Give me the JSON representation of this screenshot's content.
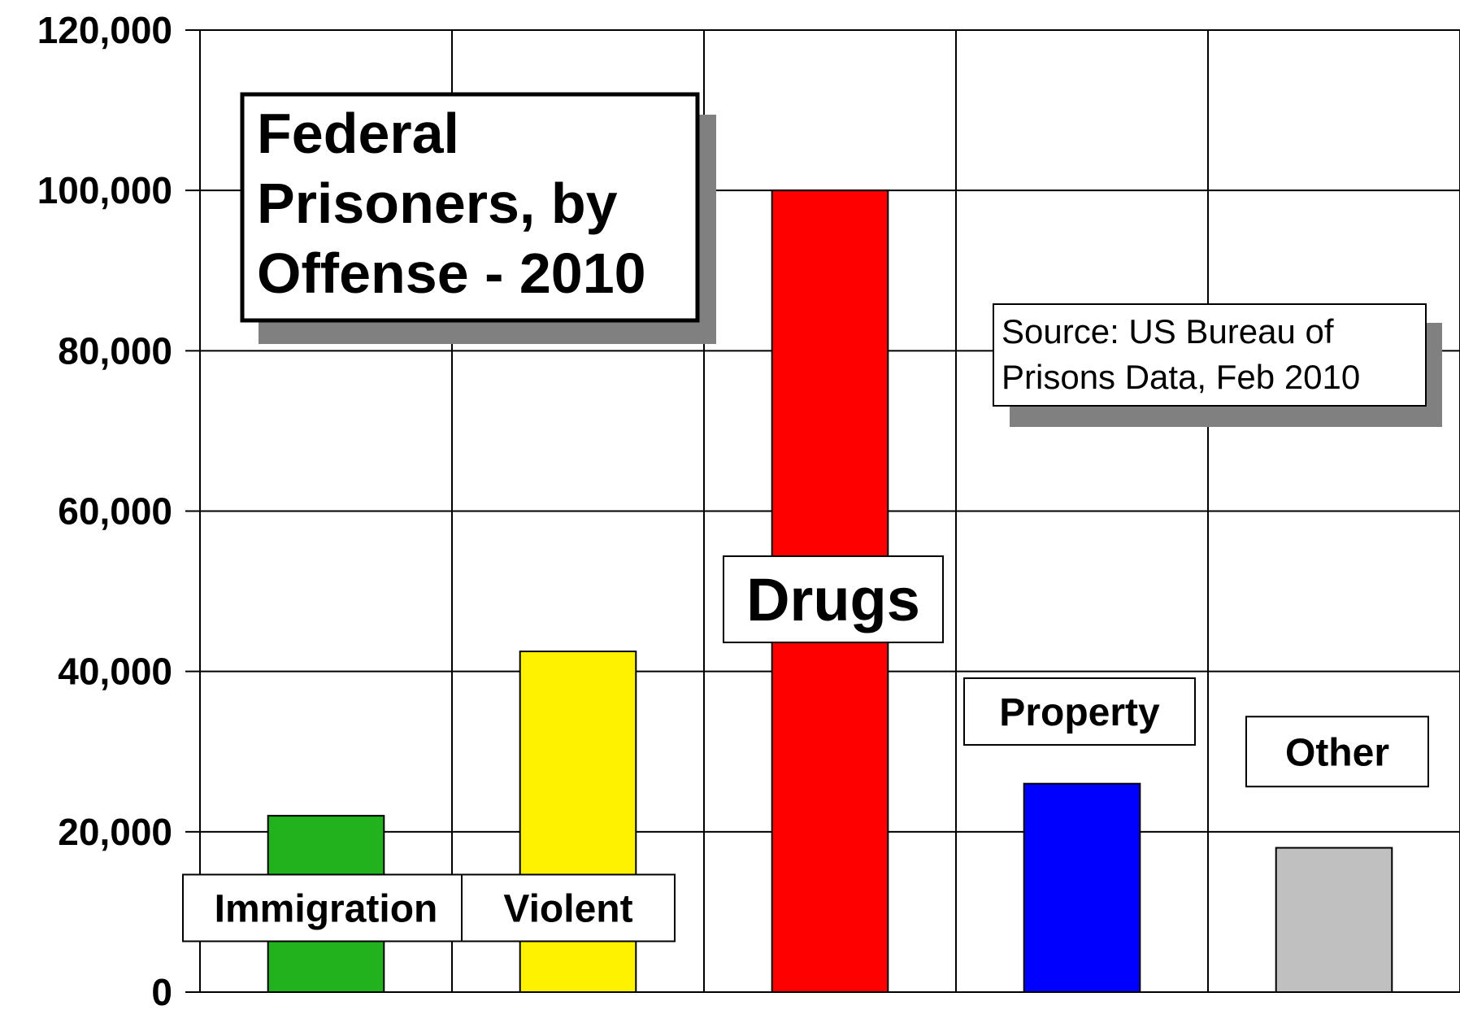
{
  "chart_data": {
    "type": "bar",
    "title_lines": [
      "Federal",
      "Prisoners, by",
      "Offense - 2010"
    ],
    "source_lines": [
      "Source: US Bureau of",
      "Prisons Data, Feb 2010"
    ],
    "xlabel": "",
    "ylabel": "",
    "ylim": [
      0,
      120000
    ],
    "yticks": [
      0,
      20000,
      40000,
      60000,
      80000,
      100000,
      120000
    ],
    "ytick_labels": [
      "0",
      "20,000",
      "40,000",
      "60,000",
      "80,000",
      "100,000",
      "120,000"
    ],
    "grid": true,
    "legend": "none",
    "categories": [
      "Immigration",
      "Violent",
      "Drugs",
      "Property",
      "Other"
    ],
    "values": [
      22000,
      42500,
      100000,
      26000,
      18000
    ],
    "colors": [
      "#22b21e",
      "#fff200",
      "#ff0000",
      "#0000ff",
      "#c0c0c0"
    ]
  }
}
